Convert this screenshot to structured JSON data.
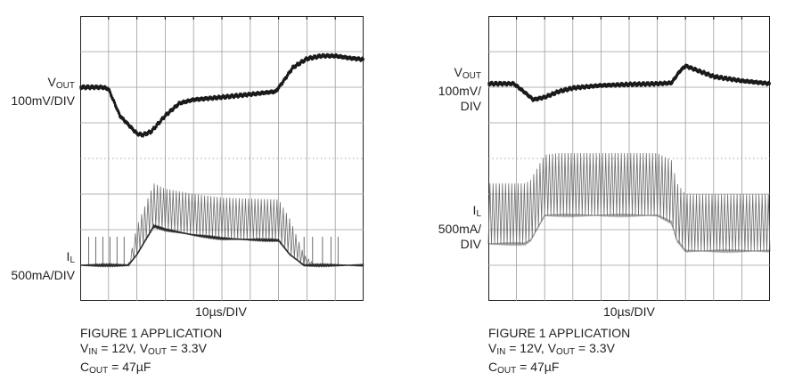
{
  "chart_data": [
    {
      "type": "line",
      "title": "",
      "xlabel": "10µs/DIV",
      "x_divisions": 10,
      "y_divisions": 8,
      "grid": true,
      "series": [
        {
          "name": "VOUT",
          "scale_main": "V",
          "scale_sub": "OUT",
          "scale_text": "100mV/DIV",
          "x_div": [
            0,
            0.8,
            1.0,
            1.4,
            2.0,
            2.2,
            2.5,
            3.0,
            3.5,
            4.0,
            5.0,
            6.0,
            6.9,
            7.2,
            7.5,
            8.0,
            8.5,
            9.0,
            9.5,
            10.0
          ],
          "y_div": [
            6.0,
            6.0,
            5.95,
            5.2,
            4.7,
            4.66,
            4.75,
            5.2,
            5.55,
            5.65,
            5.72,
            5.8,
            5.88,
            6.2,
            6.55,
            6.8,
            6.88,
            6.88,
            6.82,
            6.78
          ]
        },
        {
          "name": "IL",
          "scale_main": "I",
          "scale_sub": "L",
          "scale_text": "500mA/DIV",
          "x_div": [
            0,
            1.0,
            1.7,
            2.0,
            2.6,
            3.0,
            4.0,
            5.0,
            6.0,
            7.0,
            7.4,
            7.9,
            8.3,
            10.0
          ],
          "baseline_div": [
            1.0,
            1.0,
            1.0,
            1.3,
            2.1,
            2.0,
            1.85,
            1.75,
            1.72,
            1.7,
            1.3,
            1.0,
            1.0,
            1.0
          ],
          "ripple_div": [
            0,
            0,
            0,
            0.8,
            1.2,
            1.15,
            1.15,
            1.15,
            1.15,
            1.15,
            1.0,
            0.3,
            0,
            0
          ]
        }
      ],
      "caption": {
        "line1": "FIGURE 1 APPLICATION",
        "v": "V",
        "in": "IN",
        "eq1": " = 12V, ",
        "vo": "V",
        "out": "OUT",
        "eq2": " = 3.3V",
        "c": "C",
        "cout": "OUT",
        "eq3": " = 47µF"
      }
    },
    {
      "type": "line",
      "title": "",
      "xlabel": "10µs/DIV",
      "x_divisions": 10,
      "y_divisions": 8,
      "grid": true,
      "series": [
        {
          "name": "VOUT",
          "scale_main": "V",
          "scale_sub": "OUT",
          "scale_lines": [
            "100mV/",
            "DIV"
          ],
          "x_div": [
            0,
            0.9,
            1.3,
            1.6,
            2.0,
            2.5,
            3.0,
            4.0,
            5.0,
            6.0,
            6.5,
            6.8,
            7.0,
            7.5,
            8.0,
            9.0,
            10.0
          ],
          "y_div": [
            6.1,
            6.1,
            5.85,
            5.65,
            5.72,
            5.88,
            5.98,
            6.05,
            6.08,
            6.1,
            6.12,
            6.45,
            6.6,
            6.45,
            6.3,
            6.18,
            6.1
          ]
        },
        {
          "name": "IL",
          "scale_main": "I",
          "scale_sub": "L",
          "scale_lines": [
            "500mA/",
            "DIV"
          ],
          "x_div": [
            0,
            1.3,
            1.5,
            2.0,
            2.5,
            6.0,
            6.5,
            6.7,
            7.0,
            7.5,
            10.0
          ],
          "baseline_div": [
            1.6,
            1.6,
            1.7,
            2.4,
            2.4,
            2.4,
            2.2,
            1.7,
            1.4,
            1.4,
            1.4
          ],
          "ripple_div": [
            1.7,
            1.7,
            1.7,
            1.7,
            1.75,
            1.75,
            1.75,
            1.6,
            1.6,
            1.6,
            1.6
          ]
        }
      ],
      "caption": {
        "line1": "FIGURE 1 APPLICATION",
        "v": "V",
        "in": "IN",
        "eq1": " = 12V, ",
        "vo": "V",
        "out": "OUT",
        "eq2": " = 3.3V",
        "c": "C",
        "cout": "OUT",
        "eq3": " = 47µF"
      }
    }
  ]
}
